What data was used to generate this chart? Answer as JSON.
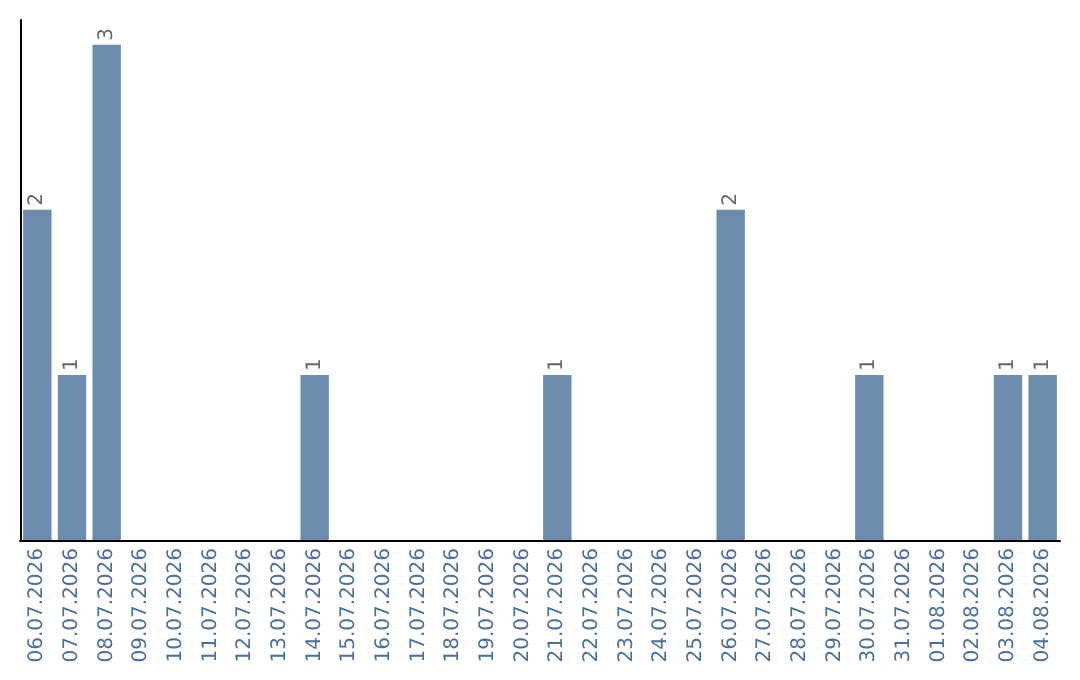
{
  "chart_data": {
    "type": "bar",
    "categories": [
      "06.07.2026",
      "07.07.2026",
      "08.07.2026",
      "09.07.2026",
      "10.07.2026",
      "11.07.2026",
      "12.07.2026",
      "13.07.2026",
      "14.07.2026",
      "15.07.2026",
      "16.07.2026",
      "17.07.2026",
      "18.07.2026",
      "19.07.2026",
      "20.07.2026",
      "21.07.2026",
      "22.07.2026",
      "23.07.2026",
      "24.07.2026",
      "25.07.2026",
      "26.07.2026",
      "27.07.2026",
      "28.07.2026",
      "29.07.2026",
      "30.07.2026",
      "31.07.2026",
      "01.08.2026",
      "02.08.2026",
      "03.08.2026",
      "04.08.2026"
    ],
    "values": [
      2,
      1,
      3,
      0,
      0,
      0,
      0,
      0,
      1,
      0,
      0,
      0,
      0,
      0,
      0,
      1,
      0,
      0,
      0,
      0,
      2,
      0,
      0,
      0,
      1,
      0,
      0,
      0,
      1,
      1
    ],
    "value_labels": [
      "2",
      "1",
      "3",
      null,
      null,
      null,
      null,
      null,
      "1",
      null,
      null,
      null,
      null,
      null,
      null,
      "1",
      null,
      null,
      null,
      null,
      "2",
      null,
      null,
      null,
      "1",
      null,
      null,
      null,
      "1",
      "1"
    ],
    "color": "#6b8cad",
    "tick_labels": "x",
    "grid": false
  }
}
